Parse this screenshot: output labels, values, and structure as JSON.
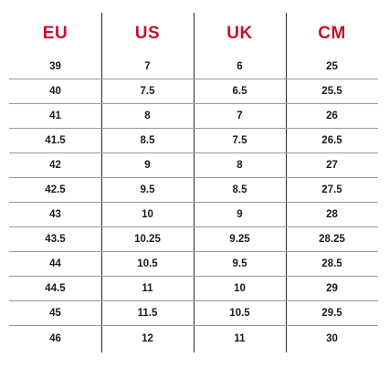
{
  "table": {
    "headers": [
      "EU",
      "US",
      "UK",
      "CM"
    ],
    "rows": [
      [
        "39",
        "7",
        "6",
        "25"
      ],
      [
        "40",
        "7.5",
        "6.5",
        "25.5"
      ],
      [
        "41",
        "8",
        "7",
        "26"
      ],
      [
        "41.5",
        "8.5",
        "7.5",
        "26.5"
      ],
      [
        "42",
        "9",
        "8",
        "27"
      ],
      [
        "42.5",
        "9.5",
        "8.5",
        "27.5"
      ],
      [
        "43",
        "10",
        "9",
        "28"
      ],
      [
        "43.5",
        "10.25",
        "9.25",
        "28.25"
      ],
      [
        "44",
        "10.5",
        "9.5",
        "28.5"
      ],
      [
        "44.5",
        "11",
        "10",
        "29"
      ],
      [
        "45",
        "11.5",
        "10.5",
        "29.5"
      ],
      [
        "46",
        "12",
        "11",
        "30"
      ]
    ]
  },
  "colors": {
    "header_text": "#c8102e",
    "body_text": "#1a1a1a",
    "divider": "#9a9a9a"
  }
}
